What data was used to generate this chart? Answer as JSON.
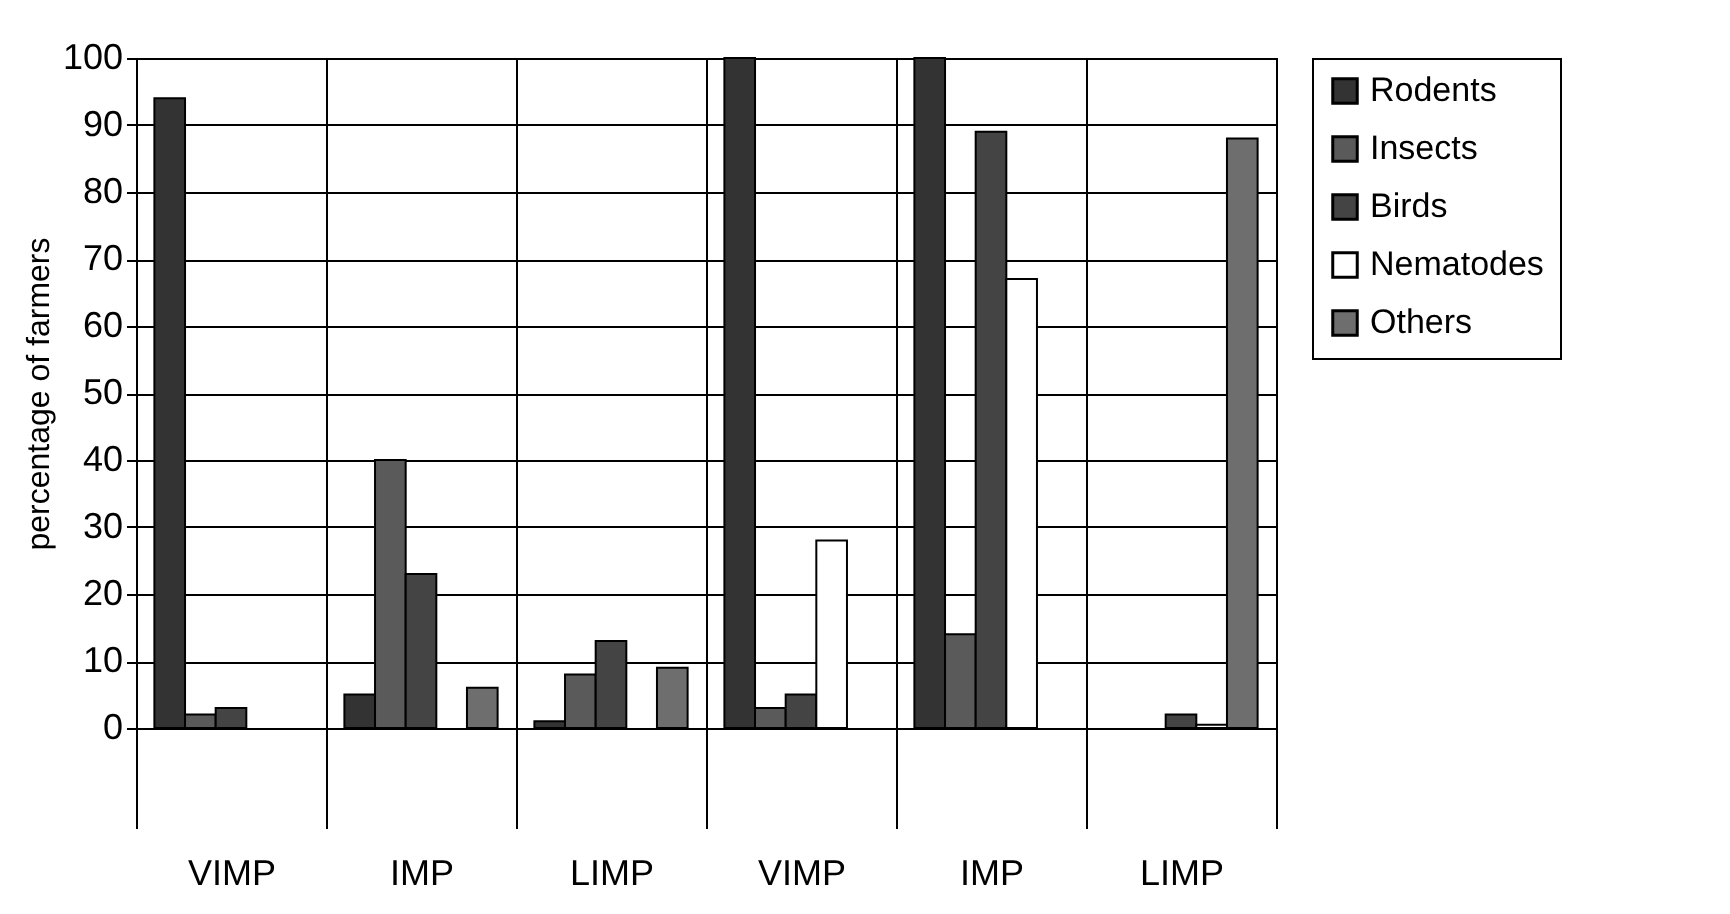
{
  "chart_data": {
    "type": "bar",
    "ylabel": "percentage of farmers",
    "categories": [
      "VIMP",
      "IMP",
      "LIMP",
      "VIMP",
      "IMP",
      "LIMP"
    ],
    "series": [
      {
        "name": "Rodents",
        "color": "#333333",
        "values": [
          94,
          5,
          1,
          100,
          100,
          0
        ]
      },
      {
        "name": "Insects",
        "color": "#5a5a5a",
        "values": [
          2,
          40,
          8,
          3,
          14,
          0
        ]
      },
      {
        "name": "Birds",
        "color": "#444444",
        "values": [
          3,
          23,
          13,
          5,
          89,
          2
        ]
      },
      {
        "name": "Nematodes",
        "color": "#ffffff",
        "values": [
          0,
          0,
          0,
          28,
          67,
          0.5
        ]
      },
      {
        "name": "Others",
        "color": "#6e6e6e",
        "values": [
          0,
          6,
          9,
          0,
          0,
          88
        ]
      }
    ],
    "ylim": [
      0,
      100
    ],
    "yticks": [
      0,
      10,
      20,
      30,
      40,
      50,
      60,
      70,
      80,
      90,
      100
    ],
    "grid": "y",
    "legend": "right"
  }
}
